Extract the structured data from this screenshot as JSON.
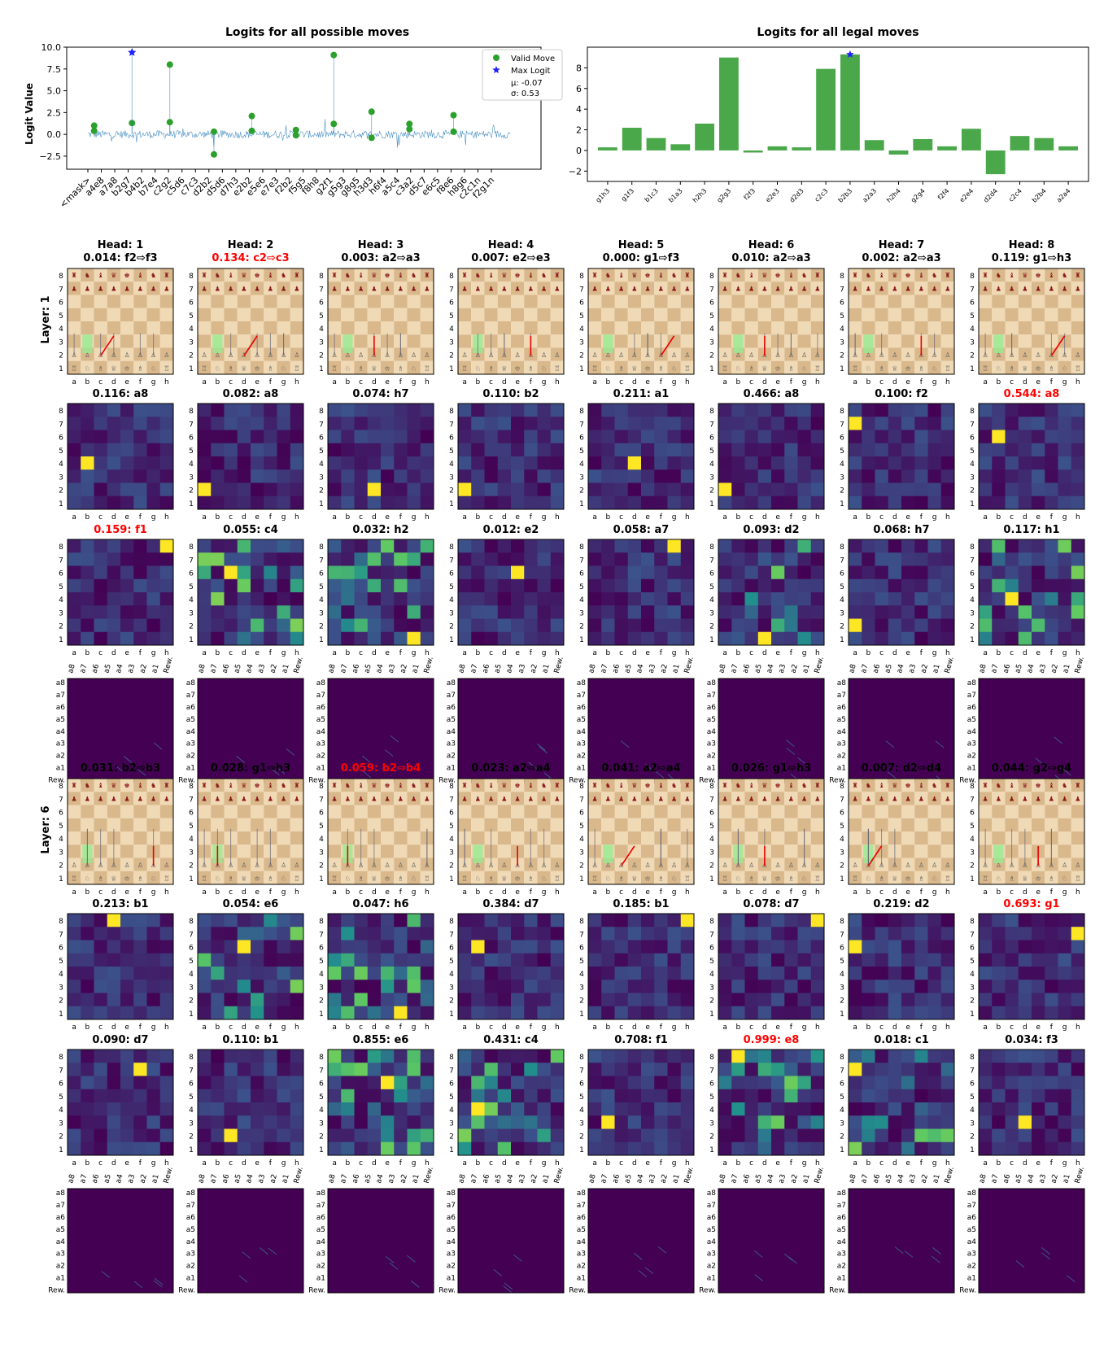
{
  "colors": {
    "valid": "#2ca02c",
    "max": "#1f1fff",
    "bar": "#4aa84a",
    "stem": "#1f77b4",
    "highlight": "#ff0000",
    "viridis_low": "#440154",
    "board_light": "#f0d9b5",
    "board_dark": "#d9b88c"
  },
  "chart_data": [
    {
      "type": "scatter",
      "title": "Logits for all possible moves",
      "ylabel": "Logit Value",
      "ylim": [
        -4.0,
        10.0
      ],
      "yticks": [
        10.0,
        7.5,
        5.0,
        2.5,
        0.0,
        -2.5
      ],
      "ytick_labels": [
        "10.0",
        "7.5",
        "5.0",
        "2.5",
        "0.0",
        "−2.5"
      ],
      "legend": {
        "position": "top-right",
        "valid": "Valid Move",
        "max": "Max Logit",
        "mu": "μ: -0.07",
        "sigma": "σ: 0.53"
      },
      "n_moves": 68,
      "xtick_labels": [
        "<mask>",
        "a4e8",
        "a7a8",
        "b2g7",
        "b4b2",
        "b7e4",
        "c2g2",
        "c5d6",
        "c7c3",
        "d2b2",
        "d5d6",
        "d7h3",
        "e2b2",
        "e5e6",
        "e7e3",
        "f2b2",
        "f5g5",
        "f8h8",
        "g2f1",
        "g5g3",
        "g8g5",
        "h3d3",
        "h6f4",
        "a5c4",
        "c3a2",
        "d5c7",
        "e6c5",
        "f8e6",
        "h8g6",
        "c2c1n",
        "f2g1n"
      ],
      "valid_points": [
        {
          "x": 1,
          "y": 1.0
        },
        {
          "x": 1,
          "y": 0.4
        },
        {
          "x": 7,
          "y": 1.3
        },
        {
          "x": 13,
          "y": 8.0
        },
        {
          "x": 13,
          "y": 1.4
        },
        {
          "x": 20,
          "y": 0.3
        },
        {
          "x": 20,
          "y": -2.3
        },
        {
          "x": 26,
          "y": 2.1
        },
        {
          "x": 26,
          "y": 0.4
        },
        {
          "x": 33,
          "y": 0.5
        },
        {
          "x": 33,
          "y": -0.1
        },
        {
          "x": 39,
          "y": 9.1
        },
        {
          "x": 39,
          "y": 1.2
        },
        {
          "x": 45,
          "y": 2.6
        },
        {
          "x": 45,
          "y": -0.4
        },
        {
          "x": 51,
          "y": 1.2
        },
        {
          "x": 51,
          "y": 0.6
        },
        {
          "x": 58,
          "y": 2.2
        },
        {
          "x": 58,
          "y": 0.3
        }
      ],
      "max_point": {
        "x": 7,
        "y": 9.4
      }
    },
    {
      "type": "bar",
      "title": "Logits for all legal moves",
      "ylim": [
        -3.0,
        10.0
      ],
      "yticks": [
        8,
        6,
        4,
        2,
        0,
        -2
      ],
      "ytick_labels": [
        "8",
        "6",
        "4",
        "2",
        "0",
        "−2"
      ],
      "categories": [
        "g1h3",
        "g1f3",
        "b1c3",
        "b1a3",
        "h2h3",
        "g2g3",
        "f2f3",
        "e2e3",
        "d2d3",
        "c2c3",
        "b2b3",
        "a2a3",
        "h2h4",
        "g2g4",
        "f2f4",
        "e2e4",
        "d2d4",
        "c2c4",
        "b2b4",
        "a2a4"
      ],
      "values": [
        0.3,
        2.2,
        1.2,
        0.6,
        2.6,
        9.0,
        -0.2,
        0.4,
        0.3,
        7.9,
        9.3,
        1.0,
        -0.4,
        1.1,
        0.4,
        2.1,
        -2.3,
        1.4,
        1.2,
        0.4
      ],
      "max_index": 10
    }
  ],
  "layers": [
    {
      "label": "Layer: 1",
      "heads": [
        "Head: 1",
        "Head: 2",
        "Head: 3",
        "Head: 4",
        "Head: 5",
        "Head: 6",
        "Head: 7",
        "Head: 8"
      ],
      "move_titles": [
        "0.014: f2⇨f3",
        "0.134: c2⇨c3",
        "0.003: a2⇨a3",
        "0.007: e2⇨e3",
        "0.000: g1⇨f3",
        "0.010: a2⇨a3",
        "0.002: a2⇨a3",
        "0.119: g1⇨h3"
      ],
      "move_red": [
        1
      ],
      "src_titles": [
        "0.116: a8",
        "0.082: a8",
        "0.074: h7",
        "0.110: b2",
        "0.211: a1",
        "0.466: a8",
        "0.100: f2",
        "0.544: a8"
      ],
      "src_red": [
        7
      ],
      "dst_titles": [
        "0.159: f1",
        "0.055: c4",
        "0.032: h2",
        "0.012: e2",
        "0.058: a7",
        "0.093: d2",
        "0.068: h7",
        "0.117: h1"
      ],
      "dst_red": [
        0
      ]
    },
    {
      "label": "Layer: 6",
      "heads": [],
      "move_titles": [
        "0.031: b2⇨b3",
        "0.028: g1⇨h3",
        "0.059: b2⇨b4",
        "0.023: a2⇨a4",
        "0.041: a2⇨a4",
        "0.026: g1⇨h3",
        "0.007: d2⇨d4",
        "0.044: g2⇨g4"
      ],
      "move_red": [
        2
      ],
      "src_titles": [
        "0.213: b1",
        "0.054: e6",
        "0.047: h6",
        "0.384: d7",
        "0.185: b1",
        "0.078: d7",
        "0.219: d2",
        "0.693: g1"
      ],
      "src_red": [
        7
      ],
      "dst_titles": [
        "0.090: d7",
        "0.110: b1",
        "0.855: e6",
        "0.431: c4",
        "0.708: f1",
        "0.999: e8",
        "0.018: c1",
        "0.034: f3"
      ],
      "dst_red": [
        5
      ]
    }
  ],
  "board_files": [
    "a",
    "b",
    "c",
    "d",
    "e",
    "f",
    "g",
    "h"
  ],
  "board_ranks": [
    "8",
    "7",
    "6",
    "5",
    "4",
    "3",
    "2",
    "1"
  ],
  "token_axis": [
    "a8",
    "a7",
    "a6",
    "a5",
    "a4",
    "a3",
    "a2",
    "a1",
    "Rew."
  ]
}
